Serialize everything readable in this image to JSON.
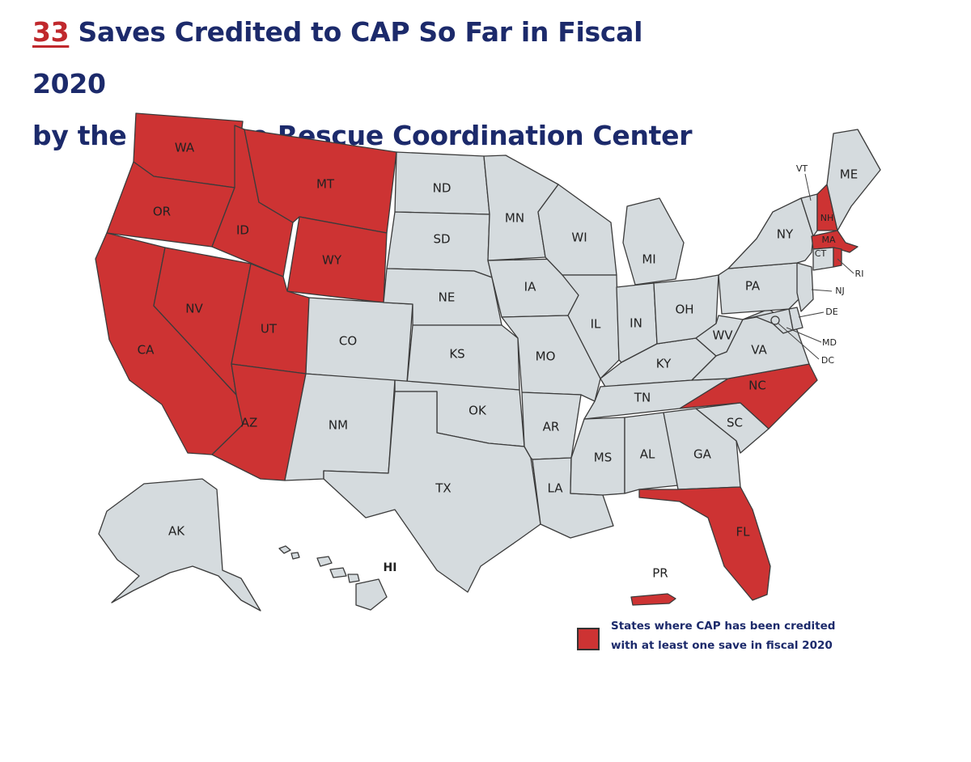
{
  "title": {
    "count": "33",
    "line1_rest": " Saves Credited to CAP So Far in Fiscal 2020",
    "line2": "by the Air Force Rescue Coordination Center"
  },
  "colors": {
    "credited": "#cd3333",
    "not_credited": "#d5dbde",
    "border": "#3b3b3b",
    "title": "#1c2a6b",
    "count": "#c0282c"
  },
  "legend": {
    "line1": "States where CAP has been credited",
    "line2": "with at least one save in fiscal 2020"
  },
  "states": [
    {
      "code": "WA",
      "credited": true
    },
    {
      "code": "OR",
      "credited": true
    },
    {
      "code": "CA",
      "credited": true
    },
    {
      "code": "ID",
      "credited": true
    },
    {
      "code": "NV",
      "credited": true
    },
    {
      "code": "MT",
      "credited": true
    },
    {
      "code": "WY",
      "credited": true
    },
    {
      "code": "UT",
      "credited": true
    },
    {
      "code": "AZ",
      "credited": true
    },
    {
      "code": "CO",
      "credited": false
    },
    {
      "code": "NM",
      "credited": false
    },
    {
      "code": "ND",
      "credited": false
    },
    {
      "code": "SD",
      "credited": false
    },
    {
      "code": "NE",
      "credited": false
    },
    {
      "code": "KS",
      "credited": false
    },
    {
      "code": "OK",
      "credited": false
    },
    {
      "code": "TX",
      "credited": false
    },
    {
      "code": "MN",
      "credited": false
    },
    {
      "code": "IA",
      "credited": false
    },
    {
      "code": "MO",
      "credited": false
    },
    {
      "code": "AR",
      "credited": false
    },
    {
      "code": "LA",
      "credited": false
    },
    {
      "code": "WI",
      "credited": false
    },
    {
      "code": "IL",
      "credited": false
    },
    {
      "code": "MS",
      "credited": false
    },
    {
      "code": "MI",
      "credited": false
    },
    {
      "code": "IN",
      "credited": false
    },
    {
      "code": "KY",
      "credited": false
    },
    {
      "code": "TN",
      "credited": false
    },
    {
      "code": "AL",
      "credited": false
    },
    {
      "code": "GA",
      "credited": false
    },
    {
      "code": "FL",
      "credited": true
    },
    {
      "code": "SC",
      "credited": false
    },
    {
      "code": "NC",
      "credited": true
    },
    {
      "code": "OH",
      "credited": false
    },
    {
      "code": "WV",
      "credited": false
    },
    {
      "code": "VA",
      "credited": false
    },
    {
      "code": "PA",
      "credited": false
    },
    {
      "code": "NY",
      "credited": false
    },
    {
      "code": "VT",
      "credited": false
    },
    {
      "code": "NH",
      "credited": true
    },
    {
      "code": "ME",
      "credited": false
    },
    {
      "code": "MA",
      "credited": true
    },
    {
      "code": "CT",
      "credited": false
    },
    {
      "code": "RI",
      "credited": true
    },
    {
      "code": "NJ",
      "credited": false
    },
    {
      "code": "DE",
      "credited": false
    },
    {
      "code": "MD",
      "credited": false
    },
    {
      "code": "DC",
      "credited": false
    },
    {
      "code": "AK",
      "credited": false
    },
    {
      "code": "HI",
      "credited": false
    },
    {
      "code": "PR",
      "credited": true
    }
  ]
}
